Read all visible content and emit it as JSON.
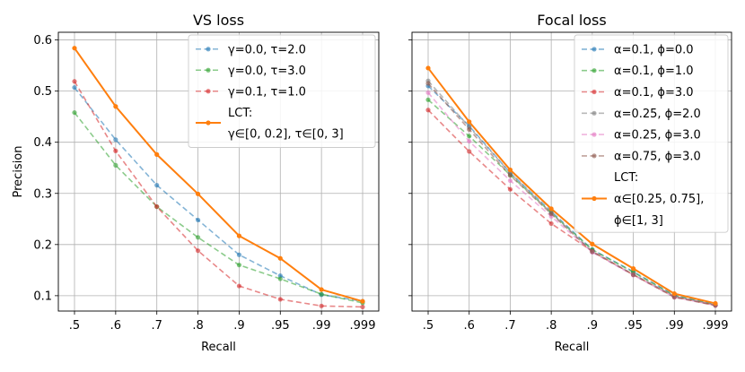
{
  "chart_data": [
    {
      "type": "line",
      "title": "VS loss",
      "xlabel": "Recall",
      "ylabel": "Precision",
      "categories": [
        ".5",
        ".6",
        ".7",
        ".8",
        ".9",
        ".95",
        ".99",
        ".999"
      ],
      "yticks": [
        "0.1",
        "0.2",
        "0.3",
        "0.4",
        "0.5",
        "0.6"
      ],
      "ytick_values": [
        0.1,
        0.2,
        0.3,
        0.4,
        0.5,
        0.6
      ],
      "ylim": [
        0.07,
        0.615
      ],
      "grid": true,
      "legend": "top-right",
      "series": [
        {
          "name": "γ=0.0, τ=2.0",
          "legend_lines": [
            "γ=0.0, τ=2.0"
          ],
          "color": "#1f77b4",
          "style": "dashed",
          "values": [
            0.507,
            0.405,
            0.316,
            0.248,
            0.18,
            0.139,
            0.102,
            0.089
          ]
        },
        {
          "name": "γ=0.0, τ=3.0",
          "legend_lines": [
            "γ=0.0, τ=3.0"
          ],
          "color": "#2ca02c",
          "style": "dashed",
          "values": [
            0.458,
            0.355,
            0.274,
            0.214,
            0.16,
            0.133,
            0.103,
            0.086
          ]
        },
        {
          "name": "γ=0.1, τ=1.0",
          "legend_lines": [
            "γ=0.1, τ=1.0"
          ],
          "color": "#d62728",
          "style": "dashed",
          "values": [
            0.519,
            0.383,
            0.274,
            0.188,
            0.119,
            0.093,
            0.08,
            0.078
          ]
        },
        {
          "name": "LCT: γ∈[0, 0.2], τ∈[0, 3]",
          "legend_lines": [
            "LCT:",
            "γ∈[0, 0.2], τ∈[0, 3]"
          ],
          "color": "#ff7f0e",
          "style": "solid",
          "values": [
            0.584,
            0.47,
            0.376,
            0.299,
            0.217,
            0.173,
            0.112,
            0.089
          ]
        }
      ]
    },
    {
      "type": "line",
      "title": "Focal loss",
      "xlabel": "Recall",
      "ylabel": "",
      "categories": [
        ".5",
        ".6",
        ".7",
        ".8",
        ".9",
        ".95",
        ".99",
        ".999"
      ],
      "ylim": [
        0.07,
        0.615
      ],
      "grid": true,
      "legend": "top-right",
      "series": [
        {
          "name": "α=0.1, ϕ=0.0",
          "legend_lines": [
            "α=0.1, ϕ=0.0"
          ],
          "color": "#1f77b4",
          "style": "dashed",
          "values": [
            0.51,
            0.432,
            0.34,
            0.265,
            0.19,
            0.147,
            0.101,
            0.083
          ]
        },
        {
          "name": "α=0.1, ϕ=1.0",
          "legend_lines": [
            "α=0.1, ϕ=1.0"
          ],
          "color": "#2ca02c",
          "style": "dashed",
          "values": [
            0.483,
            0.412,
            0.336,
            0.262,
            0.19,
            0.146,
            0.1,
            0.082
          ]
        },
        {
          "name": "α=0.1, ϕ=3.0",
          "legend_lines": [
            "α=0.1, ϕ=3.0"
          ],
          "color": "#d62728",
          "style": "dashed",
          "values": [
            0.463,
            0.382,
            0.308,
            0.241,
            0.187,
            0.141,
            0.098,
            0.081
          ]
        },
        {
          "name": "α=0.25, ϕ=2.0",
          "legend_lines": [
            "α=0.25, ϕ=2.0"
          ],
          "color": "#7f7f7f",
          "style": "dashed",
          "values": [
            0.52,
            0.43,
            0.34,
            0.262,
            0.186,
            0.142,
            0.099,
            0.082
          ]
        },
        {
          "name": "α=0.25, ϕ=3.0",
          "legend_lines": [
            "α=0.25, ϕ=3.0"
          ],
          "color": "#e377c2",
          "style": "dashed",
          "values": [
            0.497,
            0.402,
            0.325,
            0.255,
            0.185,
            0.14,
            0.097,
            0.081
          ]
        },
        {
          "name": "α=0.75, ϕ=3.0",
          "legend_lines": [
            "α=0.75, ϕ=3.0"
          ],
          "color": "#8c564b",
          "style": "dashed",
          "values": [
            0.515,
            0.425,
            0.335,
            0.26,
            0.186,
            0.141,
            0.097,
            0.081
          ]
        },
        {
          "name": "LCT: α∈[0.25, 0.75], ϕ∈[1, 3]",
          "legend_lines": [
            "LCT:",
            "α∈[0.25, 0.75],",
            "ϕ∈[1, 3]"
          ],
          "color": "#ff7f0e",
          "style": "solid",
          "values": [
            0.545,
            0.44,
            0.346,
            0.27,
            0.201,
            0.153,
            0.104,
            0.085
          ]
        }
      ]
    }
  ]
}
